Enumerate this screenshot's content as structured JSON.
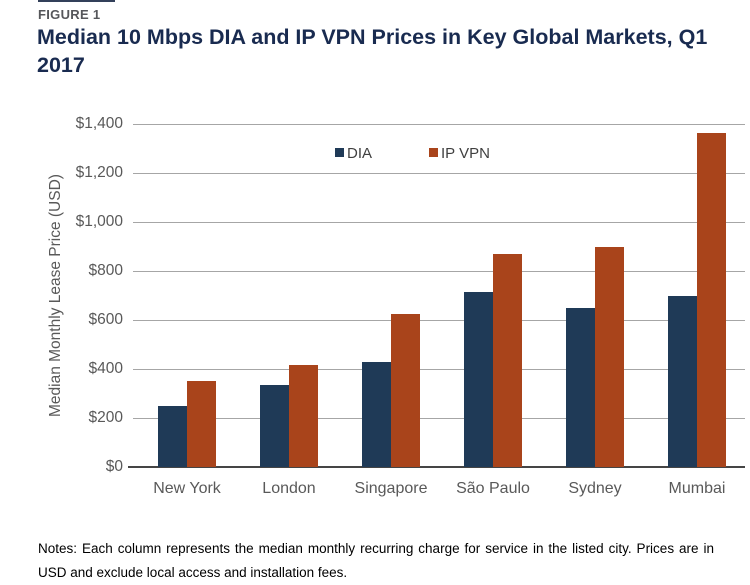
{
  "figure": {
    "label": "FIGURE 1",
    "title": "Median 10 Mbps DIA and IP VPN Prices in Key Global Markets, Q1 2017"
  },
  "chart_data": {
    "type": "bar",
    "categories": [
      "New York",
      "London",
      "Singapore",
      "São Paulo",
      "Sydney",
      "Mumbai"
    ],
    "series": [
      {
        "name": "DIA",
        "color": "#1f3a57",
        "values": [
          250,
          335,
          430,
          715,
          650,
          700
        ]
      },
      {
        "name": "IP VPN",
        "color": "#a9441b",
        "values": [
          350,
          415,
          625,
          870,
          900,
          1365
        ]
      }
    ],
    "xlabel": "",
    "ylabel": "Median Monthly Lease Price (USD)",
    "ylim": [
      0,
      1400
    ],
    "ytick_step": 200,
    "ytick_labels": [
      "$0",
      "$200",
      "$400",
      "$600",
      "$800",
      "$1,000",
      "$1,200",
      "$1,400"
    ],
    "grid": true,
    "legend_position": "top-center"
  },
  "notes": "Notes: Each column represents the median monthly recurring charge for service in the listed city. Prices are in USD and exclude local access and installation fees.",
  "colors": {
    "title_text": "#192b50",
    "figure_label_text": "#56575b",
    "axis_text": "#595959",
    "gridline": "#a6a6a6",
    "axis_line": "#454545",
    "dia_bar": "#1f3a57",
    "ip_vpn_bar": "#a9441b"
  }
}
